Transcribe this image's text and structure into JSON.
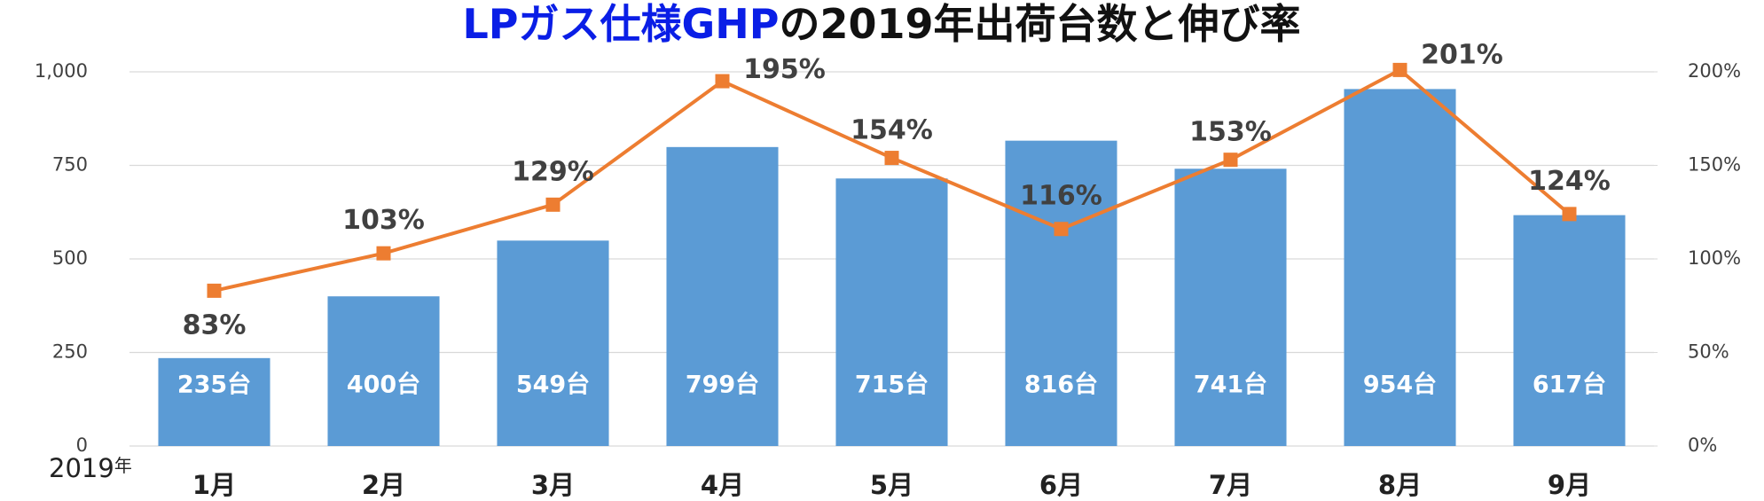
{
  "chart_data": {
    "type": "bar-line",
    "title_parts": [
      "LPガス仕様GHP",
      "の2019年出荷台数と伸び率"
    ],
    "title_colors": [
      "#0a1ee6",
      "#111111"
    ],
    "annotation_parts": [
      "2019",
      "年"
    ],
    "categories": [
      "1月",
      "2月",
      "3月",
      "4月",
      "5月",
      "6月",
      "7月",
      "8月",
      "9月"
    ],
    "series": [
      {
        "name": "出荷台数",
        "type": "bar",
        "color": "#5b9bd5",
        "values": [
          235,
          400,
          549,
          799,
          715,
          816,
          741,
          954,
          617
        ],
        "value_labels": [
          "235台",
          "400台",
          "549台",
          "799台",
          "715台",
          "816台",
          "741台",
          "954台",
          "617台"
        ]
      },
      {
        "name": "伸び率",
        "type": "line",
        "axis": "y2",
        "color": "#ed7d31",
        "values": [
          83,
          103,
          129,
          195,
          154,
          116,
          153,
          201,
          124
        ],
        "value_labels": [
          "83%",
          "103%",
          "129%",
          "195%",
          "154%",
          "116%",
          "153%",
          "201%",
          "124%"
        ]
      }
    ],
    "ylim": [
      0,
      1000
    ],
    "yticks": [
      0,
      250,
      500,
      750,
      {
        "value": 1000,
        "label": "1,000"
      }
    ],
    "y2lim": [
      0,
      200
    ],
    "y2ticks": [
      {
        "value": 0,
        "label": "0%"
      },
      {
        "value": 50,
        "label": "50%"
      },
      {
        "value": 100,
        "label": "100%"
      },
      {
        "value": 150,
        "label": "150%"
      },
      {
        "value": 200,
        "label": "200%"
      }
    ],
    "grid": true
  }
}
